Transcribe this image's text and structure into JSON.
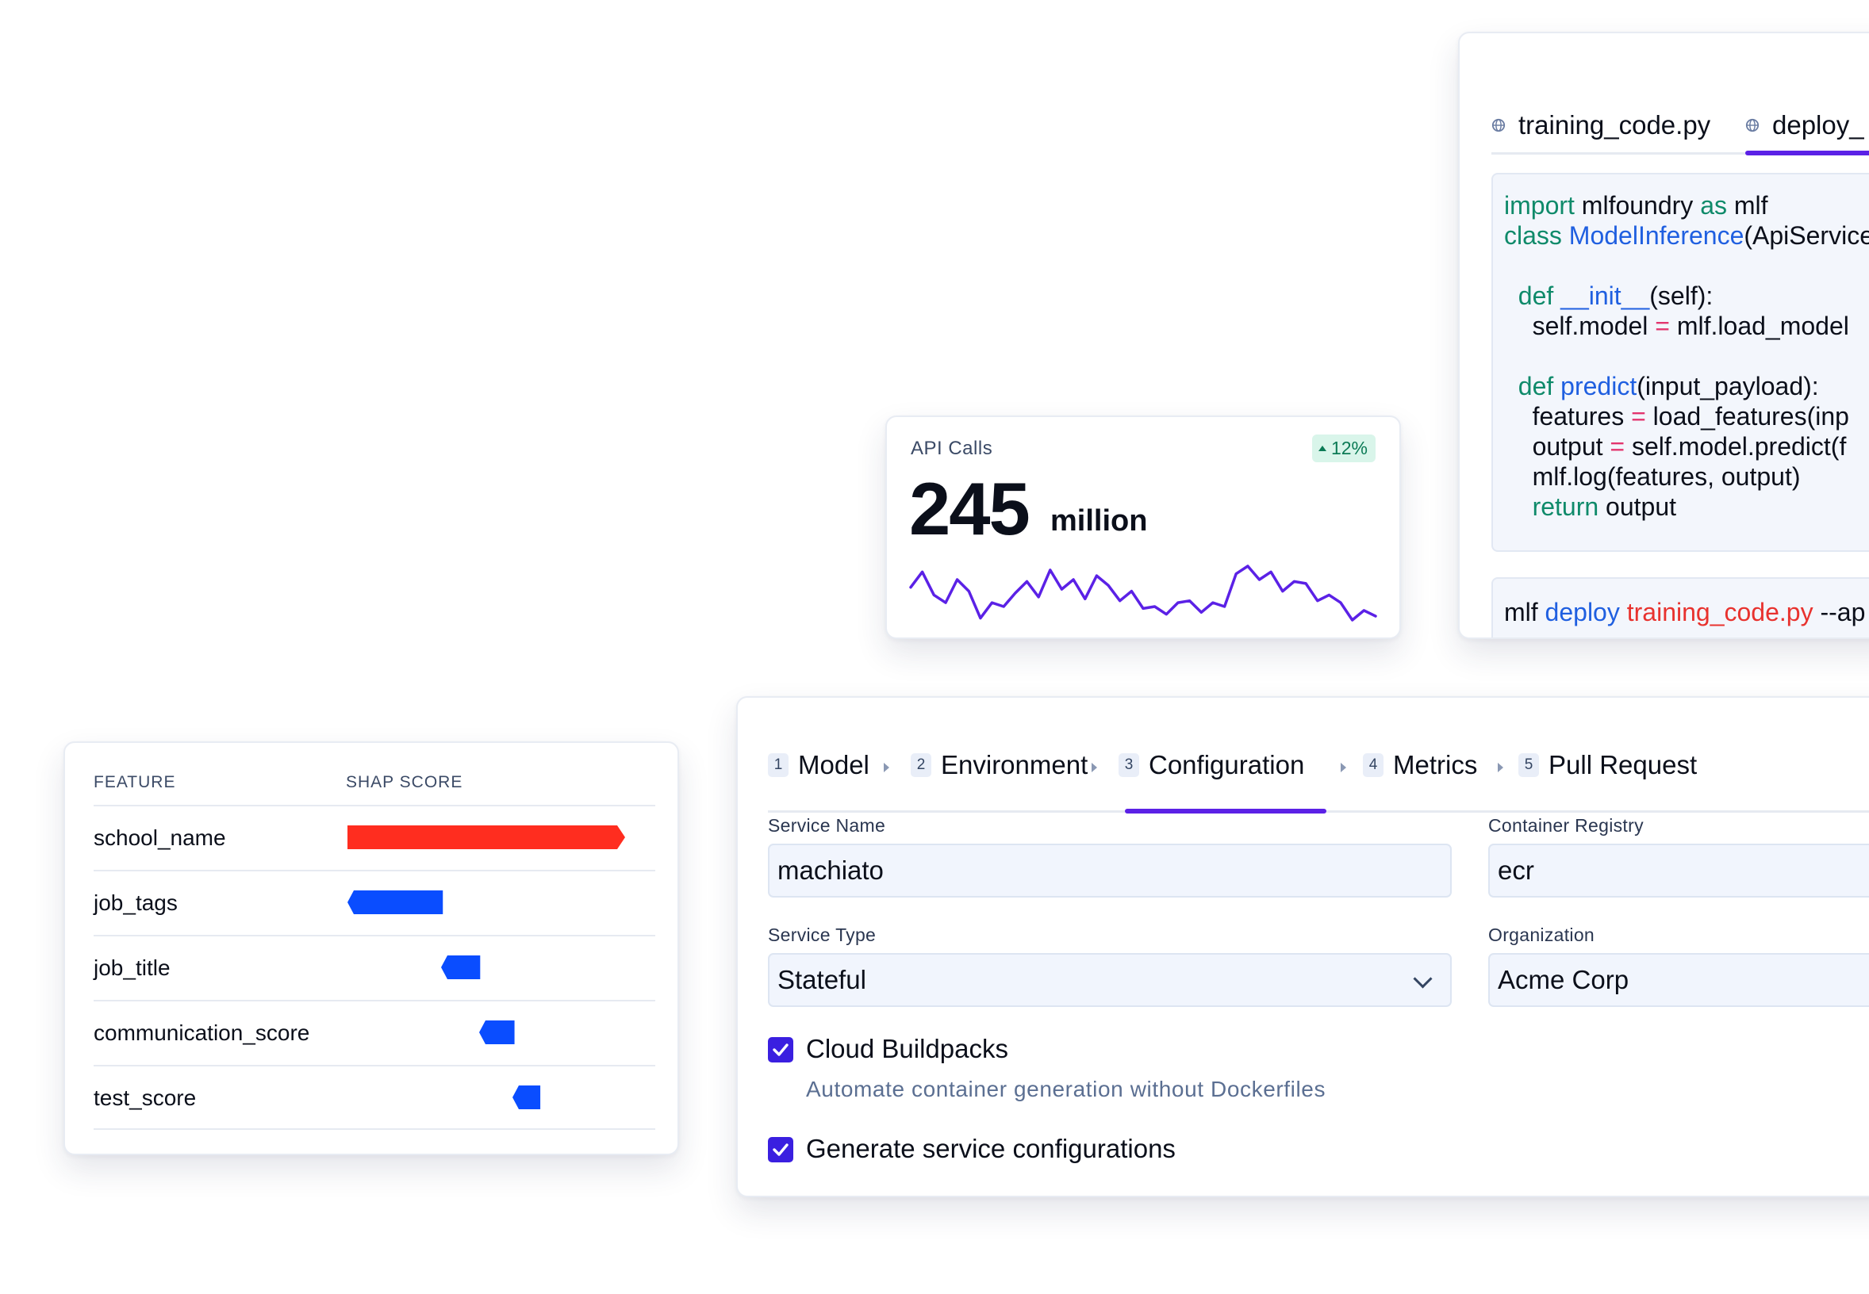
{
  "code_panel": {
    "tabs": [
      {
        "label": "training_code.py",
        "icon": "globe-icon"
      },
      {
        "label": "deploy_",
        "icon": "globe-icon"
      }
    ],
    "active_tab": "deploy_",
    "code_lines": [
      [
        {
          "t": "import",
          "c": "kw"
        },
        {
          "t": " mlfoundry "
        },
        {
          "t": "as",
          "c": "kw"
        },
        {
          "t": " mlf"
        }
      ],
      [
        {
          "t": "class",
          "c": "kw"
        },
        {
          "t": " "
        },
        {
          "t": "ModelInference",
          "c": "fn"
        },
        {
          "t": "(ApiService"
        }
      ],
      [],
      [
        {
          "t": "  "
        },
        {
          "t": "def",
          "c": "kw"
        },
        {
          "t": " "
        },
        {
          "t": "__init__",
          "c": "fn"
        },
        {
          "t": "(self):"
        }
      ],
      [
        {
          "t": "    self.model "
        },
        {
          "t": "=",
          "c": "op"
        },
        {
          "t": " mlf.load_model"
        }
      ],
      [],
      [
        {
          "t": "  "
        },
        {
          "t": "def",
          "c": "kw"
        },
        {
          "t": " "
        },
        {
          "t": "predict",
          "c": "fn"
        },
        {
          "t": "(input_payload):"
        }
      ],
      [
        {
          "t": "    features "
        },
        {
          "t": "=",
          "c": "op"
        },
        {
          "t": " load_features(inp"
        }
      ],
      [
        {
          "t": "    output "
        },
        {
          "t": "=",
          "c": "op"
        },
        {
          "t": " self.model.predict(f"
        }
      ],
      [
        {
          "t": "    mlf.log(features, output)"
        }
      ],
      [
        {
          "t": "    "
        },
        {
          "t": "return",
          "c": "kw"
        },
        {
          "t": " output"
        }
      ]
    ],
    "command": {
      "prefix": "mlf",
      "verb": "deploy",
      "file": "training_code.py",
      "suffix": "--ap"
    }
  },
  "api_calls": {
    "label": "API Calls",
    "badge": "12%",
    "badge_direction": "up",
    "value": "245",
    "unit": "million",
    "sparkline": [
      10,
      26,
      2,
      -6,
      18,
      6,
      -22,
      -6,
      -10,
      4,
      16,
      0,
      28,
      8,
      18,
      -2,
      22,
      12,
      -4,
      6,
      -12,
      -10,
      -18,
      -6,
      -4,
      -16,
      -6,
      -10,
      24,
      32,
      18,
      26,
      6,
      16,
      14,
      -4,
      2,
      -6,
      -24,
      -14,
      -20
    ],
    "line_color": "#5b21e6"
  },
  "shap_table": {
    "headers": {
      "feature": "FEATURE",
      "score": "SHAP SCORE"
    },
    "base_value": 0.0,
    "rows": [
      {
        "feature": "school_name",
        "value": 0.74,
        "direction": "positive"
      },
      {
        "feature": "job_tags",
        "value": -0.25,
        "direction": "negative"
      },
      {
        "feature": "job_title",
        "value": -0.1,
        "direction": "negative"
      },
      {
        "feature": "communication_score",
        "value": -0.09,
        "direction": "negative"
      },
      {
        "feature": "test_score",
        "value": -0.07,
        "direction": "negative"
      }
    ],
    "colors": {
      "positive": "#ff2d1f",
      "negative": "#0a4dff"
    }
  },
  "config": {
    "steps": [
      {
        "num": "1",
        "label": "Model"
      },
      {
        "num": "2",
        "label": "Environment"
      },
      {
        "num": "3",
        "label": "Configuration"
      },
      {
        "num": "4",
        "label": "Metrics"
      },
      {
        "num": "5",
        "label": "Pull Request"
      }
    ],
    "active_step": "Configuration",
    "fields": {
      "service_name": {
        "label": "Service Name",
        "value": "machiato"
      },
      "container_registry": {
        "label": "Container Registry",
        "value": "ecr"
      },
      "service_type": {
        "label": "Service Type",
        "value": "Stateful"
      },
      "organization": {
        "label": "Organization",
        "value": "Acme Corp"
      }
    },
    "options": {
      "cloud_buildpacks": {
        "label": "Cloud Buildpacks",
        "checked": true,
        "help": "Automate container generation without Dockerfiles"
      },
      "generate_configs": {
        "label": "Generate service configurations",
        "checked": true
      }
    },
    "accent": "#5b21e6"
  }
}
